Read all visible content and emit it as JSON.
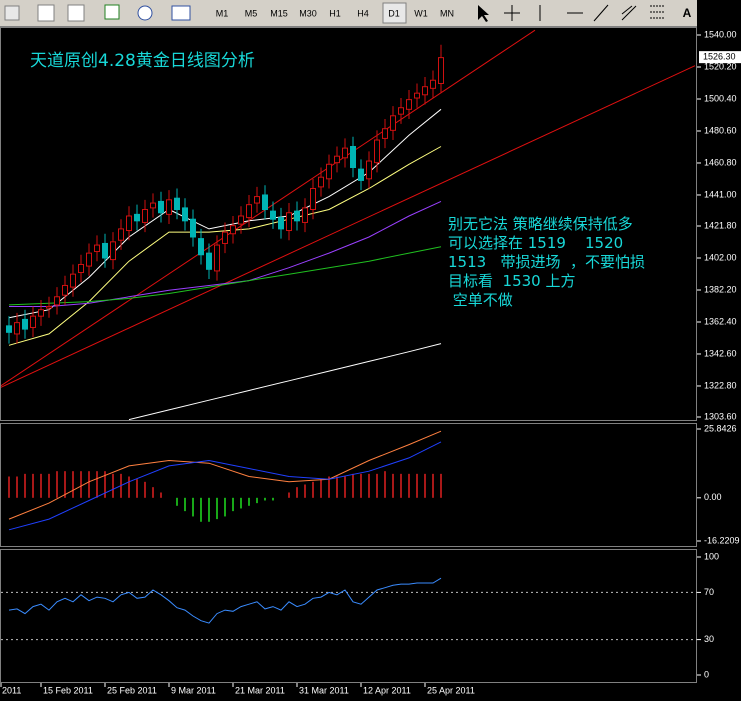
{
  "toolbar": {
    "timeframes": [
      "M1",
      "M5",
      "M15",
      "M30",
      "H1",
      "H4",
      "D1",
      "W1",
      "MN"
    ],
    "text_tool": "A"
  },
  "chart_data": [
    {
      "type": "candlestick",
      "title": "天道原创4.28黄金日线图分析",
      "annotation": [
        "别无它法 策略继续保持低多",
        "可以选择在 1519    1520",
        "1513   带损进场  ，不要怕损",
        "目标看  1530 上方",
        " 空单不做"
      ],
      "up_color": "#d01010",
      "down_color": "#00b4b4",
      "open": [
        1360,
        1355,
        1364,
        1359,
        1366,
        1371,
        1373,
        1379,
        1384,
        1393,
        1397,
        1406,
        1411,
        1401,
        1413,
        1419,
        1429,
        1424,
        1433,
        1437,
        1429,
        1439,
        1433,
        1426,
        1414,
        1405,
        1394,
        1411,
        1417,
        1423,
        1427,
        1436,
        1441,
        1431,
        1427,
        1419,
        1431,
        1424,
        1432,
        1446,
        1451,
        1461,
        1464,
        1471,
        1457,
        1451,
        1461,
        1476,
        1481,
        1491,
        1494,
        1501,
        1503,
        1507,
        1510
      ],
      "high": [
        1366,
        1368,
        1370,
        1372,
        1376,
        1378,
        1384,
        1391,
        1398,
        1404,
        1411,
        1416,
        1417,
        1418,
        1426,
        1434,
        1435,
        1438,
        1442,
        1443,
        1444,
        1445,
        1439,
        1432,
        1420,
        1411,
        1416,
        1424,
        1428,
        1434,
        1441,
        1446,
        1447,
        1437,
        1433,
        1436,
        1437,
        1439,
        1451,
        1458,
        1466,
        1471,
        1476,
        1477,
        1463,
        1468,
        1481,
        1488,
        1496,
        1501,
        1506,
        1510,
        1514,
        1518,
        1534
      ],
      "low": [
        1349,
        1349,
        1352,
        1353,
        1360,
        1365,
        1367,
        1373,
        1378,
        1387,
        1391,
        1400,
        1396,
        1395,
        1407,
        1413,
        1419,
        1418,
        1427,
        1424,
        1423,
        1426,
        1419,
        1409,
        1398,
        1389,
        1388,
        1405,
        1411,
        1417,
        1421,
        1430,
        1426,
        1420,
        1414,
        1413,
        1419,
        1418,
        1426,
        1440,
        1445,
        1455,
        1458,
        1452,
        1444,
        1445,
        1455,
        1470,
        1475,
        1485,
        1488,
        1495,
        1497,
        1501,
        1504
      ],
      "close": [
        1356,
        1362,
        1358,
        1366,
        1370,
        1372,
        1378,
        1385,
        1392,
        1398,
        1405,
        1410,
        1402,
        1412,
        1420,
        1428,
        1425,
        1432,
        1436,
        1430,
        1438,
        1432,
        1425,
        1415,
        1404,
        1395,
        1410,
        1418,
        1422,
        1428,
        1435,
        1440,
        1432,
        1426,
        1420,
        1430,
        1425,
        1433,
        1445,
        1452,
        1460,
        1465,
        1470,
        1458,
        1450,
        1462,
        1475,
        1482,
        1490,
        1495,
        1500,
        1504,
        1508,
        1512,
        1526
      ],
      "overlays": [
        {
          "color": "#ffffff",
          "x": [
            0,
            5,
            10,
            15,
            20,
            25,
            30,
            35,
            40,
            45,
            50,
            54
          ],
          "values": [
            1365,
            1370,
            1390,
            1415,
            1432,
            1420,
            1425,
            1428,
            1440,
            1455,
            1478,
            1494
          ]
        },
        {
          "color": "#ffff80",
          "x": [
            0,
            5,
            10,
            15,
            20,
            25,
            30,
            35,
            40,
            45,
            50,
            54
          ],
          "values": [
            1348,
            1355,
            1375,
            1400,
            1418,
            1418,
            1420,
            1426,
            1432,
            1445,
            1460,
            1471
          ]
        },
        {
          "color": "#9a40ff",
          "x": [
            0,
            5,
            10,
            15,
            20,
            25,
            30,
            35,
            40,
            45,
            50,
            54
          ],
          "values": [
            1372,
            1372,
            1374,
            1378,
            1382,
            1385,
            1388,
            1396,
            1405,
            1415,
            1428,
            1437
          ]
        },
        {
          "color": "#20c020",
          "x": [
            0,
            5,
            10,
            15,
            20,
            25,
            30,
            35,
            40,
            45,
            50,
            54
          ],
          "values": [
            1373,
            1374,
            1375,
            1377,
            1380,
            1384,
            1388,
            1392,
            1396,
            1400,
            1405,
            1409
          ]
        },
        {
          "color": "#ffffff",
          "x": [
            0,
            5,
            10,
            15,
            20,
            25,
            30,
            35,
            40,
            45,
            50,
            54
          ],
          "values": [
            null,
            null,
            null,
            1302,
            1308,
            1314,
            1320,
            1326,
            1332,
            1338,
            1344,
            1349
          ]
        }
      ],
      "trendlines": [
        {
          "color": "#e01010",
          "x": [
            -1,
            65.75
          ],
          "values": [
            1323,
            1543
          ]
        },
        {
          "color": "#e01010",
          "x": [
            -1,
            85.75
          ],
          "values": [
            1322,
            1521
          ]
        }
      ],
      "last_price": {
        "value": 1526.3,
        "label": "1526.30"
      },
      "ylim": [
        1303.6,
        1540
      ],
      "yticks": [
        {
          "value": 1540,
          "label": "1540.00"
        },
        {
          "value": 1520.2,
          "label": "1520.20"
        },
        {
          "value": 1500.4,
          "label": "1500.40"
        },
        {
          "value": 1480.6,
          "label": "1480.60"
        },
        {
          "value": 1460.8,
          "label": "1460.80"
        },
        {
          "value": 1441,
          "label": "1441.00"
        },
        {
          "value": 1421.8,
          "label": "1421.80"
        },
        {
          "value": 1402,
          "label": "1402.00"
        },
        {
          "value": 1382.2,
          "label": "1382.20"
        },
        {
          "value": 1362.4,
          "label": "1362.40"
        },
        {
          "value": 1342.6,
          "label": "1342.60"
        },
        {
          "value": 1322.8,
          "label": "1322.80"
        },
        {
          "value": 1303.6,
          "label": "1303.60"
        }
      ]
    },
    {
      "type": "bar",
      "pos_color": "#e02020",
      "neg_color": "#20e020",
      "values": [
        8,
        8,
        9,
        9,
        9,
        9,
        10,
        10,
        10,
        10,
        10,
        10,
        10,
        9,
        9,
        8,
        7,
        6,
        4,
        2,
        0,
        -3,
        -5,
        -7,
        -9,
        -9,
        -8,
        -7,
        -5,
        -4,
        -3,
        -2,
        -1,
        -1,
        0,
        2,
        4,
        5,
        6,
        7,
        8,
        8,
        8,
        9,
        9,
        9,
        9,
        10,
        9,
        9,
        9,
        9,
        9,
        9,
        9
      ],
      "overlays": [
        {
          "color": "#ff8040",
          "x": [
            0,
            5,
            10,
            15,
            20,
            25,
            30,
            35,
            40,
            45,
            50,
            54
          ],
          "values": [
            -8,
            -2,
            6,
            12,
            14,
            13,
            8,
            6,
            7,
            14,
            20,
            25
          ]
        },
        {
          "color": "#2040ff",
          "x": [
            0,
            5,
            10,
            15,
            20,
            25,
            30,
            35,
            40,
            45,
            50,
            54
          ],
          "values": [
            -12,
            -8,
            -1,
            6,
            12,
            14,
            11,
            8,
            7,
            10,
            15,
            21
          ]
        }
      ],
      "ylim": [
        -16.2209,
        25.8426
      ],
      "yticks": [
        {
          "value": 25.8426,
          "label": "25.8426"
        },
        {
          "value": 0,
          "label": "0.00"
        },
        {
          "value": -16.2209,
          "label": "-16.2209"
        }
      ]
    },
    {
      "type": "line",
      "color": "#3a8cff",
      "values": [
        55,
        56,
        52,
        58,
        60,
        55,
        62,
        65,
        62,
        68,
        63,
        66,
        65,
        62,
        68,
        70,
        65,
        66,
        72,
        68,
        63,
        57,
        55,
        50,
        46,
        44,
        52,
        55,
        54,
        58,
        60,
        62,
        56,
        58,
        55,
        62,
        58,
        60,
        65,
        66,
        70,
        68,
        72,
        62,
        60,
        66,
        72,
        74,
        76,
        77,
        77,
        78,
        78,
        78,
        82
      ],
      "ylim": [
        0,
        100
      ],
      "yticks": [
        0,
        30,
        70,
        100
      ],
      "xticks": [
        {
          "value": -1,
          "label": "2011"
        },
        {
          "value": 4,
          "label": "15 Feb 2011"
        },
        {
          "value": 12,
          "label": "25 Feb 2011"
        },
        {
          "value": 20,
          "label": "9 Mar 2011"
        },
        {
          "value": 28,
          "label": "21 Mar 2011"
        },
        {
          "value": 36,
          "label": "31 Mar 2011"
        },
        {
          "value": 44,
          "label": "12 Apr 2011"
        },
        {
          "value": 52,
          "label": "25 Apr 2011"
        }
      ]
    }
  ]
}
